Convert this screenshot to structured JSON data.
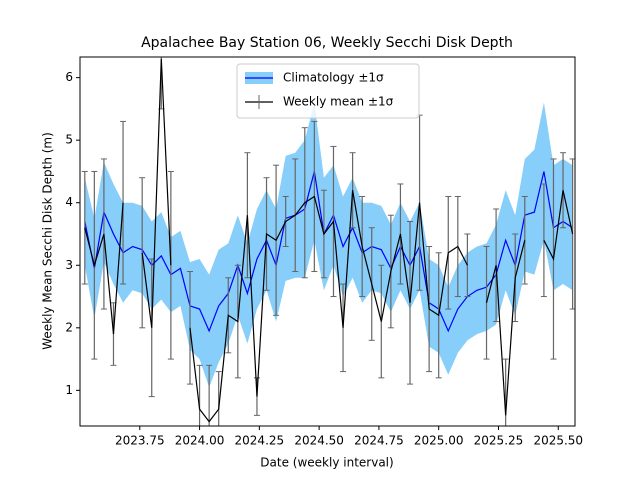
{
  "chart_data": {
    "type": "line",
    "title": "Apalachee Bay Station 06, Weekly Secchi Disk Depth",
    "xlabel": "Date (weekly interval)",
    "ylabel": "Weekly Mean Secchi Disk Depth (m)",
    "x": [
      2023.52,
      2023.56,
      2023.6,
      2023.64,
      2023.68,
      2023.72,
      2023.76,
      2023.8,
      2023.84,
      2023.88,
      2023.92,
      2023.96,
      2024.0,
      2024.04,
      2024.08,
      2024.12,
      2024.16,
      2024.2,
      2024.24,
      2024.28,
      2024.32,
      2024.36,
      2024.4,
      2024.44,
      2024.48,
      2024.52,
      2024.56,
      2024.6,
      2024.64,
      2024.68,
      2024.72,
      2024.76,
      2024.8,
      2024.84,
      2024.88,
      2024.92,
      2024.96,
      2025.0,
      2025.04,
      2025.08,
      2025.12,
      2025.16,
      2025.2,
      2025.24,
      2025.28,
      2025.32,
      2025.36,
      2025.4,
      2025.44,
      2025.48,
      2025.52,
      2025.56
    ],
    "series": [
      {
        "name": "Climatology ±1σ",
        "color": "#0000ff",
        "band_color": "#87cefa",
        "values": [
          3.7,
          2.95,
          3.85,
          3.5,
          3.2,
          3.3,
          3.25,
          3.0,
          3.15,
          2.85,
          2.95,
          2.35,
          2.3,
          1.95,
          2.35,
          2.55,
          3.0,
          2.55,
          3.1,
          3.4,
          3.0,
          3.75,
          3.8,
          3.9,
          4.5,
          3.5,
          3.8,
          3.3,
          3.6,
          3.2,
          3.3,
          3.25,
          2.95,
          3.3,
          3.0,
          3.3,
          2.4,
          2.3,
          1.95,
          2.3,
          2.5,
          2.6,
          2.65,
          2.85,
          3.4,
          3.0,
          3.8,
          3.85,
          4.5,
          3.6,
          3.7,
          3.6
        ],
        "sd": [
          0.7,
          0.8,
          0.8,
          0.8,
          0.8,
          0.7,
          0.7,
          0.7,
          0.7,
          0.6,
          0.6,
          0.7,
          0.8,
          0.9,
          0.9,
          0.8,
          0.8,
          0.8,
          0.8,
          0.8,
          0.9,
          1.0,
          1.0,
          1.1,
          1.1,
          0.9,
          0.8,
          0.8,
          0.8,
          0.8,
          0.7,
          0.7,
          0.7,
          0.7,
          0.7,
          0.7,
          0.7,
          0.7,
          0.7,
          0.7,
          0.7,
          0.7,
          0.7,
          0.8,
          0.8,
          0.8,
          0.9,
          1.0,
          1.1,
          1.0,
          1.0,
          1.0
        ]
      },
      {
        "name": "Weekly mean ±1σ",
        "color": "#000000",
        "error_color": "#666666",
        "values": [
          3.6,
          3.0,
          3.5,
          1.9,
          4.0,
          null,
          3.2,
          2.0,
          6.3,
          3.0,
          null,
          2.0,
          0.7,
          0.5,
          0.7,
          2.2,
          2.1,
          3.8,
          0.9,
          3.5,
          3.4,
          3.7,
          3.8,
          4.0,
          4.1,
          3.5,
          3.7,
          2.0,
          4.2,
          3.3,
          2.7,
          2.1,
          2.9,
          3.5,
          2.4,
          4.0,
          2.3,
          2.2,
          3.2,
          3.3,
          3.0,
          null,
          2.4,
          3.0,
          0.6,
          2.8,
          3.4,
          null,
          3.4,
          3.1,
          4.2,
          3.5
        ],
        "errors": [
          0.9,
          1.5,
          1.2,
          0.5,
          1.3,
          null,
          1.2,
          1.1,
          0.8,
          1.5,
          null,
          0.9,
          0.7,
          0.9,
          0.6,
          0.6,
          0.9,
          1.0,
          0.3,
          0.9,
          1.2,
          0.4,
          0.9,
          1.2,
          1.2,
          0.7,
          1.2,
          0.7,
          0.6,
          0.8,
          0.9,
          0.9,
          0.9,
          0.8,
          1.3,
          1.4,
          1.0,
          1.0,
          0.9,
          0.8,
          0.5,
          null,
          0.9,
          0.9,
          0.9,
          0.7,
          0.7,
          null,
          0.9,
          1.6,
          0.6,
          1.2
        ]
      }
    ],
    "xlim": [
      2023.5,
      2025.57
    ],
    "ylim": [
      0.43,
      6.33
    ],
    "xticks": [
      2023.75,
      {
        "value": 2024,
        "label": "2024.00"
      },
      2024.25,
      {
        "value": 2024.5,
        "label": "2024.50"
      },
      2024.75,
      {
        "value": 2025,
        "label": "2025.00"
      },
      2025.25,
      {
        "value": 2025.5,
        "label": "2025.50"
      }
    ],
    "yticks": [
      1,
      2,
      3,
      4,
      5,
      6
    ],
    "legend": "upper center"
  }
}
